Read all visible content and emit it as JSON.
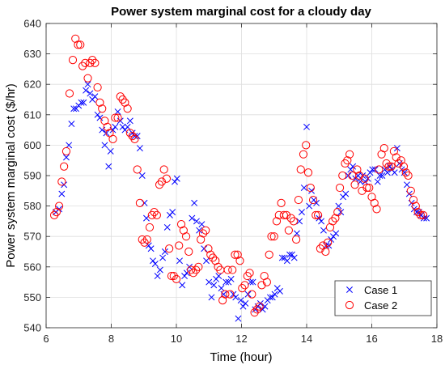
{
  "chart_data": {
    "type": "scatter",
    "title": "Power system marginal cost for a cloudy day",
    "xlabel": "Time (hour)",
    "ylabel": "Power system marginal cost ($/hr)",
    "xlim": [
      6,
      18
    ],
    "ylim": [
      540,
      640
    ],
    "xticks": [
      6,
      8,
      10,
      12,
      14,
      16,
      18
    ],
    "yticks": [
      540,
      550,
      560,
      570,
      580,
      590,
      600,
      610,
      620,
      630,
      640
    ],
    "grid": true,
    "legend_position": "bottom-right",
    "series": [
      {
        "name": "Case 1",
        "marker": "x",
        "color": "#0000ff",
        "points": [
          [
            6.3,
            578
          ],
          [
            6.4,
            579
          ],
          [
            6.48,
            584
          ],
          [
            6.55,
            587
          ],
          [
            6.62,
            596
          ],
          [
            6.7,
            600
          ],
          [
            6.78,
            607
          ],
          [
            6.85,
            612
          ],
          [
            6.92,
            612
          ],
          [
            7.0,
            613
          ],
          [
            7.08,
            614
          ],
          [
            7.15,
            614
          ],
          [
            7.22,
            618
          ],
          [
            7.28,
            620
          ],
          [
            7.35,
            617
          ],
          [
            7.42,
            615
          ],
          [
            7.5,
            616
          ],
          [
            7.58,
            610
          ],
          [
            7.65,
            609
          ],
          [
            7.72,
            605
          ],
          [
            7.8,
            600
          ],
          [
            7.85,
            604
          ],
          [
            7.92,
            593
          ],
          [
            7.98,
            598
          ],
          [
            8.05,
            605
          ],
          [
            8.12,
            606
          ],
          [
            8.2,
            611
          ],
          [
            8.28,
            608
          ],
          [
            8.35,
            606
          ],
          [
            8.42,
            605
          ],
          [
            8.5,
            606
          ],
          [
            8.58,
            608
          ],
          [
            8.65,
            604
          ],
          [
            8.72,
            603
          ],
          [
            8.8,
            603
          ],
          [
            8.88,
            599
          ],
          [
            8.95,
            590
          ],
          [
            9.02,
            581
          ],
          [
            9.08,
            576
          ],
          [
            9.15,
            567
          ],
          [
            9.22,
            566
          ],
          [
            9.28,
            562
          ],
          [
            9.35,
            561
          ],
          [
            9.42,
            557
          ],
          [
            9.5,
            559
          ],
          [
            9.58,
            563
          ],
          [
            9.65,
            565
          ],
          [
            9.72,
            573
          ],
          [
            9.8,
            577
          ],
          [
            9.88,
            578
          ],
          [
            9.95,
            588
          ],
          [
            10.02,
            589
          ],
          [
            10.1,
            562
          ],
          [
            10.18,
            554
          ],
          [
            10.25,
            557
          ],
          [
            10.32,
            558
          ],
          [
            10.4,
            560
          ],
          [
            10.48,
            576
          ],
          [
            10.55,
            581
          ],
          [
            10.62,
            575
          ],
          [
            10.7,
            572
          ],
          [
            10.78,
            574
          ],
          [
            10.85,
            566
          ],
          [
            10.92,
            562
          ],
          [
            11.0,
            555
          ],
          [
            11.08,
            550
          ],
          [
            11.15,
            554
          ],
          [
            11.22,
            556
          ],
          [
            11.3,
            557
          ],
          [
            11.38,
            553
          ],
          [
            11.45,
            551
          ],
          [
            11.52,
            555
          ],
          [
            11.6,
            555
          ],
          [
            11.68,
            556
          ],
          [
            11.75,
            551
          ],
          [
            11.82,
            550
          ],
          [
            11.9,
            543
          ],
          [
            11.98,
            549
          ],
          [
            12.05,
            547
          ],
          [
            12.12,
            548
          ],
          [
            12.2,
            551
          ],
          [
            12.28,
            555
          ],
          [
            12.35,
            555
          ],
          [
            12.42,
            546
          ],
          [
            12.5,
            547
          ],
          [
            12.58,
            548
          ],
          [
            12.65,
            546
          ],
          [
            12.72,
            547
          ],
          [
            12.8,
            549
          ],
          [
            12.88,
            550
          ],
          [
            12.95,
            550
          ],
          [
            13.02,
            551
          ],
          [
            13.1,
            553
          ],
          [
            13.18,
            552
          ],
          [
            13.25,
            563
          ],
          [
            13.32,
            563
          ],
          [
            13.4,
            562
          ],
          [
            13.48,
            564
          ],
          [
            13.55,
            564
          ],
          [
            13.62,
            563
          ],
          [
            13.7,
            571
          ],
          [
            13.78,
            575
          ],
          [
            13.85,
            578
          ],
          [
            13.92,
            586
          ],
          [
            14.0,
            606
          ],
          [
            14.08,
            580
          ],
          [
            14.15,
            585
          ],
          [
            14.22,
            582
          ],
          [
            14.3,
            581
          ],
          [
            14.38,
            576
          ],
          [
            14.45,
            575
          ],
          [
            14.52,
            572
          ],
          [
            14.6,
            567
          ],
          [
            14.68,
            567
          ],
          [
            14.75,
            569
          ],
          [
            14.82,
            570
          ],
          [
            14.9,
            571
          ],
          [
            14.98,
            580
          ],
          [
            15.05,
            578
          ],
          [
            15.12,
            583
          ],
          [
            15.2,
            584
          ],
          [
            15.28,
            590
          ],
          [
            15.35,
            592
          ],
          [
            15.42,
            593
          ],
          [
            15.5,
            589
          ],
          [
            15.58,
            590
          ],
          [
            15.65,
            588
          ],
          [
            15.72,
            590
          ],
          [
            15.8,
            588
          ],
          [
            15.88,
            589
          ],
          [
            15.95,
            591
          ],
          [
            16.02,
            592
          ],
          [
            16.1,
            592
          ],
          [
            16.18,
            588
          ],
          [
            16.25,
            590
          ],
          [
            16.32,
            590
          ],
          [
            16.4,
            592
          ],
          [
            16.48,
            591
          ],
          [
            16.55,
            593
          ],
          [
            16.62,
            592
          ],
          [
            16.7,
            591
          ],
          [
            16.78,
            599
          ],
          [
            16.85,
            594
          ],
          [
            16.92,
            592
          ],
          [
            17.0,
            591
          ],
          [
            17.08,
            587
          ],
          [
            17.15,
            584
          ],
          [
            17.22,
            581
          ],
          [
            17.3,
            579
          ],
          [
            17.38,
            578
          ],
          [
            17.45,
            578
          ],
          [
            17.52,
            577
          ],
          [
            17.6,
            576
          ],
          [
            17.68,
            576
          ]
        ]
      },
      {
        "name": "Case 2",
        "marker": "o",
        "color": "#ff0000",
        "points": [
          [
            6.25,
            577
          ],
          [
            6.32,
            578
          ],
          [
            6.4,
            580
          ],
          [
            6.48,
            588
          ],
          [
            6.55,
            593
          ],
          [
            6.62,
            598
          ],
          [
            6.72,
            617
          ],
          [
            6.82,
            628
          ],
          [
            6.9,
            635
          ],
          [
            6.98,
            633
          ],
          [
            7.05,
            633
          ],
          [
            7.12,
            626
          ],
          [
            7.2,
            627
          ],
          [
            7.28,
            622
          ],
          [
            7.35,
            627
          ],
          [
            7.42,
            628
          ],
          [
            7.5,
            627
          ],
          [
            7.58,
            619
          ],
          [
            7.65,
            614
          ],
          [
            7.72,
            612
          ],
          [
            7.8,
            608
          ],
          [
            7.88,
            606
          ],
          [
            7.95,
            604
          ],
          [
            8.05,
            602
          ],
          [
            8.12,
            609
          ],
          [
            8.2,
            609
          ],
          [
            8.28,
            616
          ],
          [
            8.35,
            615
          ],
          [
            8.42,
            614
          ],
          [
            8.5,
            612
          ],
          [
            8.58,
            604
          ],
          [
            8.65,
            603
          ],
          [
            8.72,
            602
          ],
          [
            8.8,
            592
          ],
          [
            8.88,
            581
          ],
          [
            8.95,
            569
          ],
          [
            9.02,
            568
          ],
          [
            9.1,
            569
          ],
          [
            9.18,
            573
          ],
          [
            9.25,
            577
          ],
          [
            9.32,
            578
          ],
          [
            9.4,
            577
          ],
          [
            9.48,
            587
          ],
          [
            9.55,
            588
          ],
          [
            9.62,
            592
          ],
          [
            9.7,
            589
          ],
          [
            9.78,
            566
          ],
          [
            9.85,
            557
          ],
          [
            9.92,
            557
          ],
          [
            10.0,
            556
          ],
          [
            10.08,
            567
          ],
          [
            10.15,
            574
          ],
          [
            10.22,
            572
          ],
          [
            10.3,
            570
          ],
          [
            10.38,
            565
          ],
          [
            10.45,
            559
          ],
          [
            10.52,
            558
          ],
          [
            10.6,
            559
          ],
          [
            10.68,
            560
          ],
          [
            10.75,
            569
          ],
          [
            10.82,
            571
          ],
          [
            10.9,
            572
          ],
          [
            10.98,
            566
          ],
          [
            11.05,
            564
          ],
          [
            11.12,
            563
          ],
          [
            11.2,
            562
          ],
          [
            11.28,
            560
          ],
          [
            11.35,
            559
          ],
          [
            11.42,
            549
          ],
          [
            11.5,
            551
          ],
          [
            11.58,
            559
          ],
          [
            11.65,
            551
          ],
          [
            11.72,
            559
          ],
          [
            11.8,
            564
          ],
          [
            11.88,
            564
          ],
          [
            11.95,
            562
          ],
          [
            12.02,
            553
          ],
          [
            12.1,
            554
          ],
          [
            12.18,
            557
          ],
          [
            12.25,
            558
          ],
          [
            12.32,
            551
          ],
          [
            12.4,
            545
          ],
          [
            12.48,
            546
          ],
          [
            12.55,
            547
          ],
          [
            12.62,
            554
          ],
          [
            12.7,
            557
          ],
          [
            12.78,
            555
          ],
          [
            12.85,
            564
          ],
          [
            12.92,
            570
          ],
          [
            13.0,
            570
          ],
          [
            13.08,
            575
          ],
          [
            13.15,
            577
          ],
          [
            13.22,
            581
          ],
          [
            13.3,
            577
          ],
          [
            13.38,
            577
          ],
          [
            13.45,
            572
          ],
          [
            13.52,
            576
          ],
          [
            13.6,
            575
          ],
          [
            13.68,
            569
          ],
          [
            13.75,
            582
          ],
          [
            13.82,
            592
          ],
          [
            13.9,
            597
          ],
          [
            13.98,
            600
          ],
          [
            14.05,
            591
          ],
          [
            14.12,
            586
          ],
          [
            14.2,
            582
          ],
          [
            14.28,
            577
          ],
          [
            14.35,
            577
          ],
          [
            14.42,
            566
          ],
          [
            14.5,
            567
          ],
          [
            14.58,
            565
          ],
          [
            14.65,
            568
          ],
          [
            14.72,
            573
          ],
          [
            14.8,
            575
          ],
          [
            14.88,
            576
          ],
          [
            14.95,
            578
          ],
          [
            15.02,
            586
          ],
          [
            15.1,
            590
          ],
          [
            15.18,
            594
          ],
          [
            15.25,
            595
          ],
          [
            15.32,
            597
          ],
          [
            15.4,
            590
          ],
          [
            15.48,
            587
          ],
          [
            15.55,
            592
          ],
          [
            15.62,
            590
          ],
          [
            15.7,
            585
          ],
          [
            15.78,
            589
          ],
          [
            15.85,
            586
          ],
          [
            15.92,
            586
          ],
          [
            16.0,
            583
          ],
          [
            16.08,
            581
          ],
          [
            16.15,
            579
          ],
          [
            16.22,
            592
          ],
          [
            16.3,
            597
          ],
          [
            16.38,
            599
          ],
          [
            16.45,
            594
          ],
          [
            16.52,
            593
          ],
          [
            16.6,
            593
          ],
          [
            16.68,
            598
          ],
          [
            16.75,
            596
          ],
          [
            16.82,
            594
          ],
          [
            16.9,
            595
          ],
          [
            16.98,
            593
          ],
          [
            17.05,
            591
          ],
          [
            17.12,
            590
          ],
          [
            17.2,
            585
          ],
          [
            17.28,
            582
          ],
          [
            17.35,
            580
          ],
          [
            17.42,
            578
          ],
          [
            17.5,
            577
          ],
          [
            17.58,
            577
          ]
        ]
      }
    ]
  }
}
